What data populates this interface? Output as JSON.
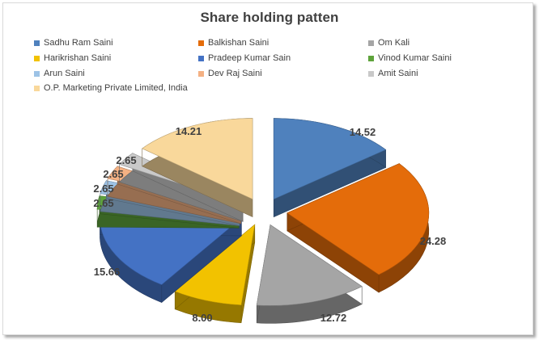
{
  "chart_data": {
    "type": "pie",
    "title": "Share holding patten",
    "legend_position": "top",
    "exploded": true,
    "three_d": true,
    "slices": [
      {
        "label": "Sadhu Ram Saini",
        "value": 14.52,
        "color": "#4f81bd"
      },
      {
        "label": "Balkishan Saini",
        "value": 24.28,
        "color": "#e46c0a"
      },
      {
        "label": "Om Kali",
        "value": 12.72,
        "color": "#a5a5a5"
      },
      {
        "label": "Harikrishan Saini",
        "value": 8.0,
        "color": "#f2c200"
      },
      {
        "label": "Pradeep Kumar Sain",
        "value": 15.66,
        "color": "#4472c4"
      },
      {
        "label": "Vinod Kumar Saini",
        "value": 2.65,
        "color": "#5ea33b"
      },
      {
        "label": "Arun Saini",
        "value": 2.65,
        "color": "#9dc3e6"
      },
      {
        "label": "Dev Raj Saini",
        "value": 2.65,
        "color": "#f4b183"
      },
      {
        "label": "Amit Saini",
        "value": 2.65,
        "color": "#c9c9c9"
      },
      {
        "label": "O.P. Marketing Private Limited, India",
        "value": 14.21,
        "color": "#f9d89b"
      }
    ]
  }
}
